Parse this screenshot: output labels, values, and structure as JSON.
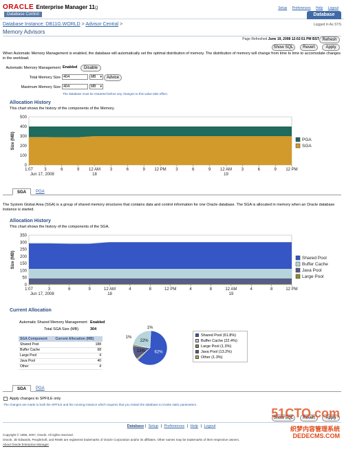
{
  "header": {
    "brand": "ORACLE",
    "product": "Enterprise Manager 11",
    "version": "g",
    "subtitle": "Database Control",
    "links": [
      "Setup",
      "Preferences",
      "Help",
      "Logout"
    ],
    "active_tab": "Database"
  },
  "breadcrumb": {
    "instance": "Database Instance: DB11G.WORLD",
    "sep1": ">",
    "advisor": "Advisor Central",
    "sep2": ">"
  },
  "logged_in": "Logged in As SYS",
  "page_title": "Memory Advisors",
  "refresh": {
    "label": "Page Refreshed",
    "timestamp": "June 19, 2008 12:02:51 PM BST",
    "button": "Refresh"
  },
  "top_buttons": {
    "show_sql": "Show SQL",
    "revert": "Revert",
    "apply": "Apply"
  },
  "intro_text": "When Automatic Memory Management is enabled, the database will automatically set the optimal distribution of memory. The distribution of memory will change from time to time to accomodate changes in the workload.",
  "amm": {
    "label": "Automatic Memory Management",
    "status": "Enabled",
    "disable_button": "Disable",
    "total_label": "Total Memory Size",
    "total_value": "404",
    "total_unit": "MB",
    "advice_button": "Advice",
    "max_label": "Maximum Memory Size",
    "max_value": "404",
    "max_unit": "MB",
    "hint": "The database must be restarted before any changes to this value take effect."
  },
  "alloc_history_1": {
    "title": "Allocation History",
    "desc": "This chart shows the history of the components of the Memory."
  },
  "tabs_1": {
    "sga": "SGA",
    "pga": "PGA"
  },
  "sga_text": "The System Global Area (SGA) is a group of shared memory structures that contains data and control information for one Oracle database. The SGA is allocated in memory when an Oracle database instance is started.",
  "alloc_history_2": {
    "title": "Allocation History",
    "desc": "This chart shows the history of the components of the SGA."
  },
  "current_alloc": {
    "title": "Current Allocation",
    "asmm_label": "Automatic Shared Memory Management",
    "asmm_status": "Enabled",
    "total_sga_label": "Total SGA Size (MB)",
    "total_sga_value": "304",
    "table_header": [
      "SGA Component",
      "Current Allocation (MB)"
    ],
    "rows": [
      [
        "Shared Pool",
        "188"
      ],
      [
        "Buffer Cache",
        "68"
      ],
      [
        "Large Pool",
        "4"
      ],
      [
        "Java Pool",
        "40"
      ],
      [
        "Other",
        "4"
      ]
    ]
  },
  "tabs_2": {
    "sga": "SGA",
    "pga": "PGA"
  },
  "spfile": {
    "checkbox_label": "Apply changes to SPFILE only",
    "note": "The changes are made to both the SPFILE and the running instance which requires that you restart the database to invoke static parameters."
  },
  "bottom_buttons": {
    "show_sql": "Show SQL",
    "revert": "Revert",
    "apply": "Apply"
  },
  "footer": {
    "links": [
      "Database",
      "Setup",
      "Preferences",
      "Help",
      "Logout"
    ],
    "copyright": "Copyright © 1996, 2007, Oracle. All rights reserved.",
    "trademark": "Oracle, JD Edwards, PeopleSoft, and Retek are registered trademarks of Oracle Corporation and/or its affiliates. Other names may be trademarks of their respective owners.",
    "about": "About Oracle Enterprise Manager"
  },
  "watermark": {
    "site": "51CTO.com",
    "line1": "织梦内容管理系统",
    "line2": "DEDECMS.COM"
  },
  "colors": {
    "pga": "#1f6b5e",
    "sga": "#d19a2a",
    "shared_pool": "#3556c4",
    "buffer_cache": "#b6d4dc",
    "java_pool": "#565c86",
    "large_pool": "#8a8a3a",
    "other": "#c7ad46"
  },
  "chart_data": [
    {
      "type": "area",
      "title": "",
      "ylabel": "Size (MB)",
      "ylim": [
        0,
        500
      ],
      "yticks": [
        0,
        100,
        200,
        300,
        400,
        500
      ],
      "x_ticks": [
        "1:07",
        "3",
        "6",
        "9",
        "12 AM",
        "3",
        "6",
        "9",
        "12 PM",
        "3",
        "6",
        "9",
        "12 AM",
        "3",
        "6",
        "9",
        "12 PM"
      ],
      "x_date_labels": [
        [
          "Jun 17, 2008",
          0
        ],
        [
          "18",
          4
        ],
        [
          "19",
          12
        ]
      ],
      "series": [
        {
          "name": "SGA",
          "color": "#d19a2a",
          "values": [
            290,
            290,
            288,
            288,
            300,
            300,
            300,
            300,
            300,
            300,
            300,
            300,
            300,
            300,
            300,
            300,
            300
          ]
        },
        {
          "name": "PGA",
          "color": "#1f6b5e",
          "values": [
            110,
            110,
            112,
            112,
            100,
            100,
            100,
            100,
            100,
            100,
            100,
            100,
            100,
            100,
            100,
            100,
            100
          ]
        }
      ],
      "legend": "right"
    },
    {
      "type": "area",
      "title": "",
      "ylabel": "Size (MB)",
      "ylim": [
        0,
        350
      ],
      "yticks": [
        0,
        50,
        100,
        150,
        200,
        250,
        300,
        350
      ],
      "x_ticks": [
        "1:07",
        "3",
        "6",
        "9",
        "12 AM",
        "4",
        "8",
        "12 PM",
        "4",
        "8",
        "12 AM",
        "4",
        "8",
        "12 PM"
      ],
      "x_date_labels": [
        [
          "Jun 17, 2008",
          0
        ],
        [
          "18",
          4
        ],
        [
          "19",
          10
        ]
      ],
      "series": [
        {
          "name": "Large Pool",
          "color": "#8a8a3a",
          "values": [
            4,
            4,
            4,
            4,
            4,
            4,
            4,
            4,
            4,
            4,
            4,
            4,
            4,
            4
          ]
        },
        {
          "name": "Java Pool",
          "color": "#565c86",
          "values": [
            40,
            40,
            40,
            40,
            40,
            40,
            40,
            40,
            40,
            40,
            40,
            40,
            40,
            40
          ]
        },
        {
          "name": "Buffer Cache",
          "color": "#b6d4dc",
          "values": [
            68,
            68,
            68,
            68,
            68,
            68,
            68,
            68,
            68,
            68,
            68,
            68,
            68,
            68
          ]
        },
        {
          "name": "Shared Pool",
          "color": "#3556c4",
          "values": [
            180,
            180,
            178,
            178,
            188,
            188,
            188,
            188,
            188,
            188,
            188,
            188,
            188,
            188
          ]
        }
      ],
      "legend_order": [
        "Shared Pool",
        "Buffer Cache",
        "Java Pool",
        "Large Pool"
      ],
      "legend": "right"
    },
    {
      "type": "pie",
      "slices": [
        {
          "name": "Shared Pool",
          "label": "Shared Pool (61.8%)",
          "value": 61.8,
          "pct_label": "62%",
          "color": "#3556c4"
        },
        {
          "name": "Buffer Cache",
          "label": "Buffer Cache (22.4%)",
          "value": 22.4,
          "pct_label": "22%",
          "color": "#b6d4dc"
        },
        {
          "name": "Large Pool",
          "label": "Large Pool (1.3%)",
          "value": 1.3,
          "pct_label": "1%",
          "color": "#8a8a3a"
        },
        {
          "name": "Java Pool",
          "label": "Java Pool (13.2%)",
          "value": 13.2,
          "pct_label": "13%",
          "color": "#565c86"
        },
        {
          "name": "Other",
          "label": "Other (1.3%)",
          "value": 1.3,
          "pct_label": "1%",
          "color": "#c7ad46"
        }
      ],
      "legend": "right"
    }
  ]
}
